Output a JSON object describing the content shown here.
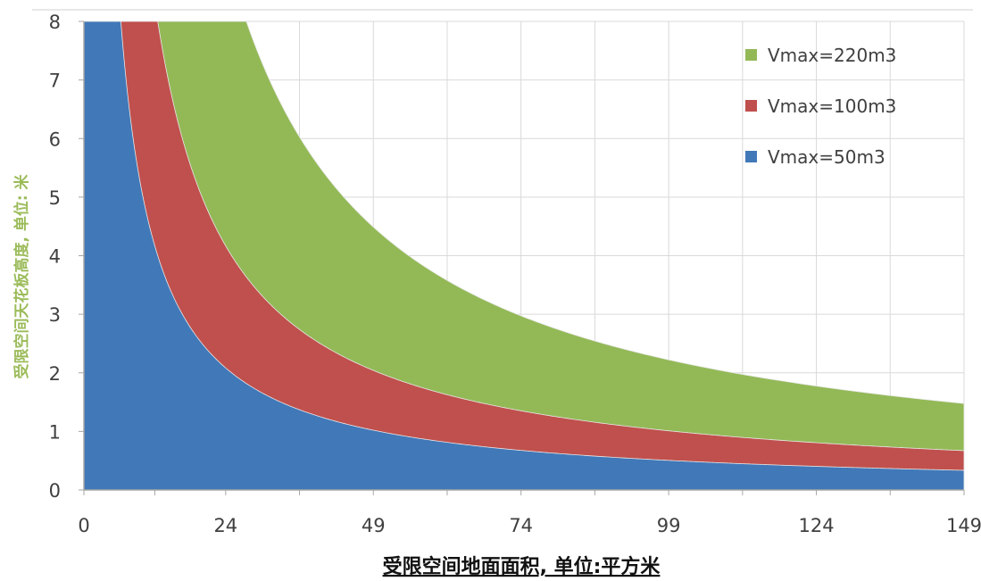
{
  "chart_data": {
    "type": "area",
    "xlabel": "受限空间地面面积, 单位:平方米",
    "ylabel": "受限空间天花板高度, 单位: 米",
    "x_ticks": [
      0,
      24,
      49,
      74,
      99,
      124,
      149
    ],
    "y_ticks": [
      0,
      1,
      2,
      3,
      4,
      5,
      6,
      7,
      8
    ],
    "xlim": [
      0,
      149
    ],
    "ylim": [
      0,
      8
    ],
    "grid": true,
    "legend_position": "top-right",
    "series": [
      {
        "name": "Vmax=220m3",
        "volume": 220,
        "color": "#93b957"
      },
      {
        "name": "Vmax=100m3",
        "volume": 100,
        "color": "#c0504d"
      },
      {
        "name": "Vmax=50m3",
        "volume": 50,
        "color": "#4178b8"
      }
    ]
  },
  "colors": {
    "grid": "#d9d9d9",
    "axis": "#a6a6a6",
    "ylabel": "#9bbb59"
  }
}
